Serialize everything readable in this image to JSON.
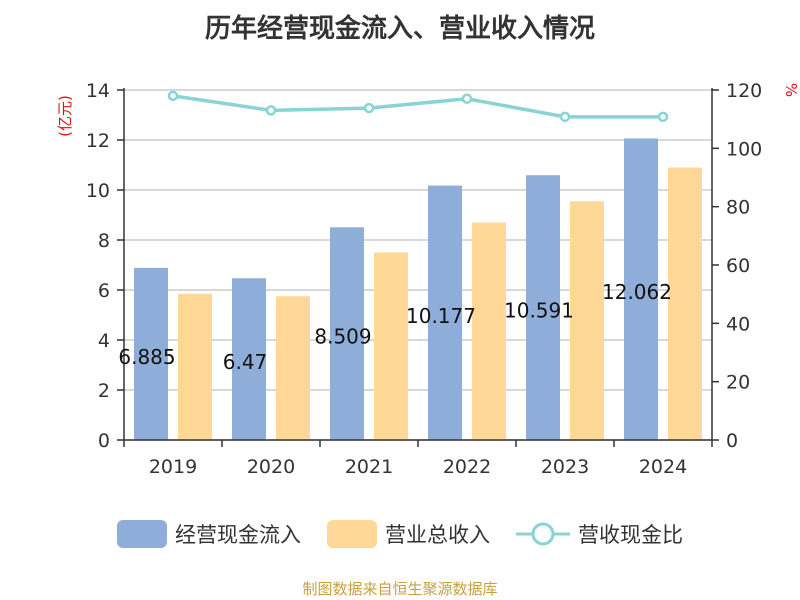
{
  "title": "历年经营现金流入、营业收入情况",
  "source": "制图数据来自恒生聚源数据库",
  "chart_data": {
    "type": "bar",
    "categories": [
      "2019",
      "2020",
      "2021",
      "2022",
      "2023",
      "2024"
    ],
    "series": [
      {
        "name": "经营现金流入",
        "kind": "bar",
        "axis": "left",
        "color": "#8eaed9",
        "values": [
          6.885,
          6.47,
          8.509,
          10.177,
          10.591,
          12.062
        ],
        "labels": [
          "6.885",
          "6.47",
          "8.509",
          "10.177",
          "10.591",
          "12.062"
        ]
      },
      {
        "name": "营业总收入",
        "kind": "bar",
        "axis": "left",
        "color": "#ffd898",
        "values": [
          5.85,
          5.75,
          7.5,
          8.7,
          9.55,
          10.9
        ]
      },
      {
        "name": "营收现金比",
        "kind": "line",
        "axis": "right",
        "color": "#88d4d4",
        "values": [
          118,
          113,
          113.8,
          117,
          110.8,
          110.8
        ]
      }
    ],
    "y_left": {
      "label": "(亿元)",
      "min": 0,
      "max": 14,
      "ticks": [
        0,
        2,
        4,
        6,
        8,
        10,
        12,
        14
      ]
    },
    "y_right": {
      "label": "%",
      "min": 0,
      "max": 120,
      "ticks": [
        0,
        20,
        40,
        60,
        80,
        100,
        120
      ]
    },
    "grid": true,
    "legend_position": "bottom"
  }
}
